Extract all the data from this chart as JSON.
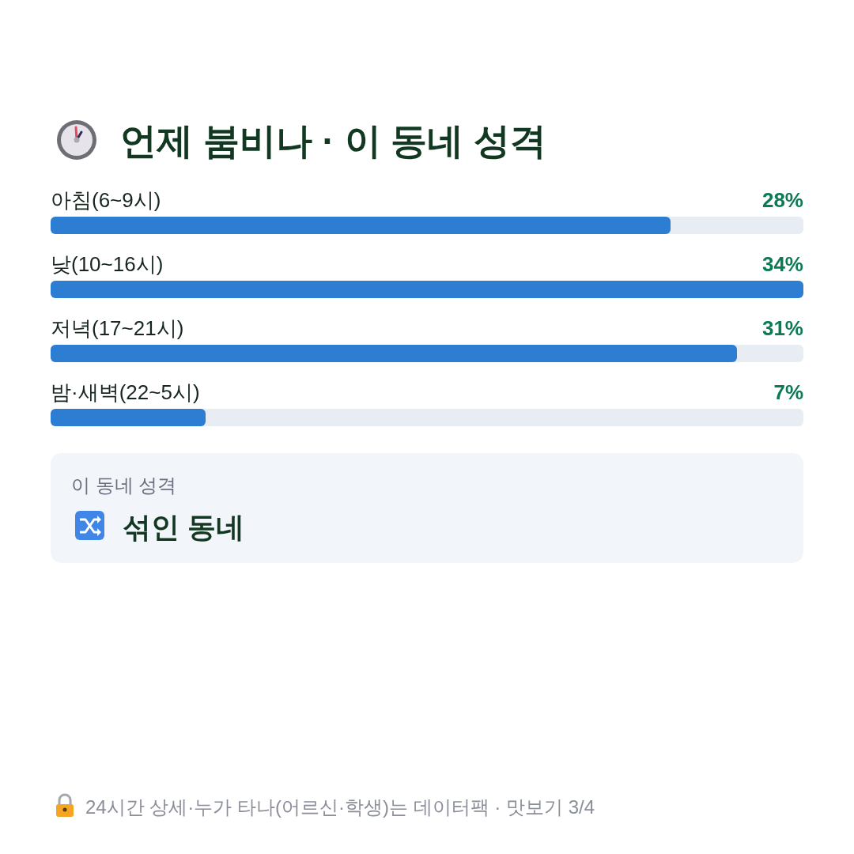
{
  "chart_data": {
    "type": "bar",
    "orientation": "horizontal",
    "title": "언제 붐비나 · 이 동네 성격",
    "categories": [
      "아침(6~9시)",
      "낮(10~16시)",
      "저녁(17~21시)",
      "밤·새벽(22~5시)"
    ],
    "values": [
      28,
      34,
      31,
      7
    ],
    "value_labels": [
      "28%",
      "34%",
      "31%",
      "7%"
    ],
    "color": "#2d7dd2",
    "annotations": [
      "이 동네 성격",
      "섞인 동네",
      "24시간 상세·누가 타나(어르신·학생)는 데이터팩 · 맛보기 3/4"
    ]
  }
}
